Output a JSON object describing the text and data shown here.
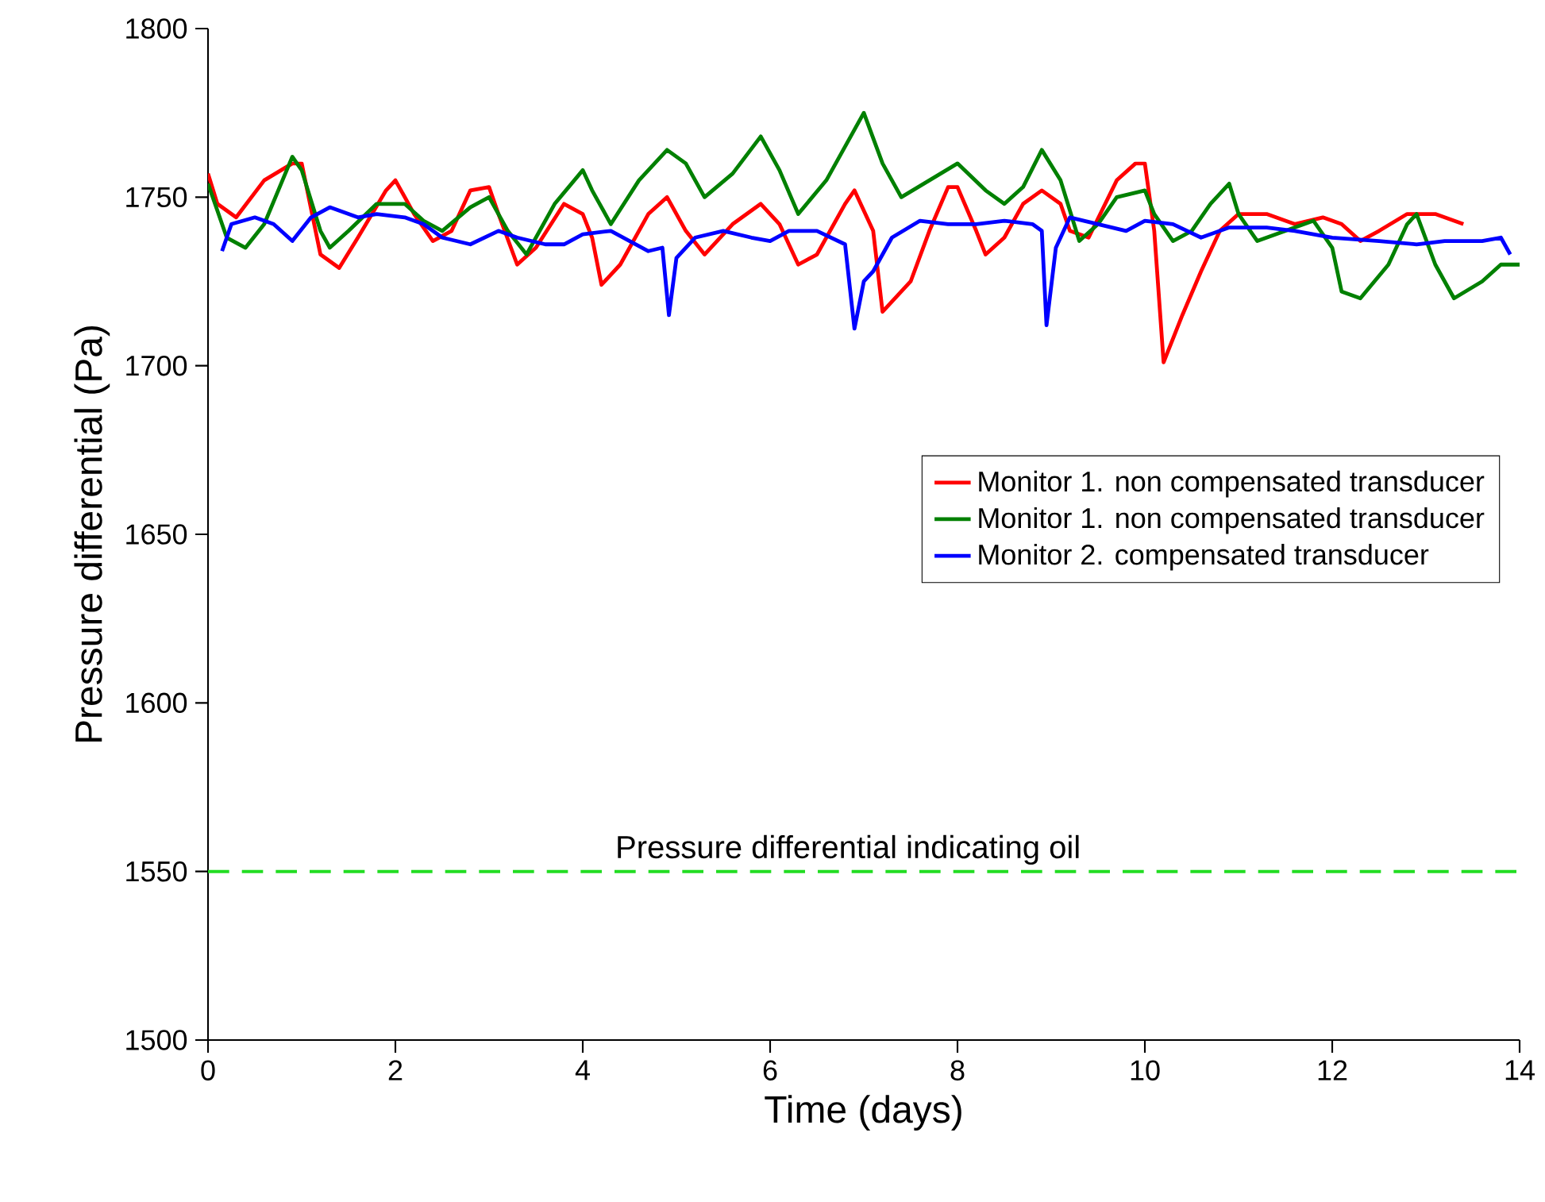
{
  "chart_data": {
    "type": "line",
    "xlabel": "Time (days)",
    "ylabel": "Pressure differential (Pa)",
    "xlim": [
      0,
      14
    ],
    "ylim": [
      1500,
      1800
    ],
    "xticks": [
      0,
      2,
      4,
      6,
      8,
      10,
      12,
      14
    ],
    "yticks": [
      1500,
      1550,
      1600,
      1650,
      1700,
      1750,
      1800
    ],
    "grid": false,
    "legend": "right",
    "marker": "none",
    "line_style": "solid",
    "ref_lines": [
      {
        "axis": "y",
        "value": 1550,
        "label": "Pressure differential indicating oil",
        "color": "#22dd22",
        "line_style": "dashed"
      }
    ],
    "series": [
      {
        "name": "Monitor 1. non compensated transducer",
        "color": "#ff0000",
        "x": [
          0,
          0.1,
          0.3,
          0.6,
          0.9,
          1.0,
          1.2,
          1.4,
          1.6,
          1.9,
          2.0,
          2.2,
          2.4,
          2.6,
          2.8,
          3.0,
          3.1,
          3.3,
          3.5,
          3.8,
          4.0,
          4.1,
          4.2,
          4.4,
          4.7,
          4.9,
          5.1,
          5.3,
          5.6,
          5.9,
          6.1,
          6.3,
          6.5,
          6.8,
          6.9,
          7.1,
          7.2,
          7.5,
          7.7,
          7.9,
          8.0,
          8.2,
          8.3,
          8.5,
          8.7,
          8.9,
          9.1,
          9.2,
          9.4,
          9.7,
          9.9,
          10.0,
          10.1,
          10.2,
          10.4,
          10.6,
          10.8,
          11.0,
          11.3,
          11.6,
          11.9,
          12.1,
          12.3,
          12.5,
          12.8,
          13.1,
          13.4
        ],
        "values": [
          1757,
          1748,
          1744,
          1755,
          1760,
          1760,
          1733,
          1729,
          1738,
          1752,
          1755,
          1745,
          1737,
          1740,
          1752,
          1753,
          1745,
          1730,
          1735,
          1748,
          1745,
          1738,
          1724,
          1730,
          1745,
          1750,
          1740,
          1733,
          1742,
          1748,
          1742,
          1730,
          1733,
          1748,
          1752,
          1740,
          1716,
          1725,
          1740,
          1753,
          1753,
          1740,
          1733,
          1738,
          1748,
          1752,
          1748,
          1740,
          1738,
          1755,
          1760,
          1760,
          1740,
          1701,
          1715,
          1728,
          1740,
          1745,
          1745,
          1742,
          1744,
          1742,
          1737,
          1740,
          1745,
          1745,
          1742
        ]
      },
      {
        "name": "Monitor 1. non compensated transducer",
        "color": "#008000",
        "x": [
          0,
          0.2,
          0.4,
          0.6,
          0.9,
          1.0,
          1.2,
          1.3,
          1.5,
          1.8,
          2.1,
          2.3,
          2.5,
          2.8,
          3.0,
          3.2,
          3.4,
          3.7,
          4.0,
          4.1,
          4.3,
          4.6,
          4.9,
          5.1,
          5.3,
          5.6,
          5.9,
          6.1,
          6.3,
          6.6,
          6.9,
          7.0,
          7.2,
          7.4,
          7.7,
          8.0,
          8.3,
          8.5,
          8.7,
          8.9,
          9.1,
          9.3,
          9.5,
          9.7,
          10.0,
          10.1,
          10.3,
          10.5,
          10.7,
          10.9,
          11.0,
          11.2,
          11.5,
          11.8,
          12.0,
          12.1,
          12.3,
          12.6,
          12.8,
          12.9,
          13.1,
          13.3,
          13.6,
          13.8,
          14.0
        ],
        "values": [
          1754,
          1738,
          1735,
          1742,
          1762,
          1758,
          1740,
          1735,
          1740,
          1748,
          1748,
          1743,
          1740,
          1747,
          1750,
          1740,
          1733,
          1748,
          1758,
          1752,
          1742,
          1755,
          1764,
          1760,
          1750,
          1757,
          1768,
          1758,
          1745,
          1755,
          1770,
          1775,
          1760,
          1750,
          1755,
          1760,
          1752,
          1748,
          1753,
          1764,
          1755,
          1737,
          1742,
          1750,
          1752,
          1745,
          1737,
          1740,
          1748,
          1754,
          1745,
          1737,
          1740,
          1743,
          1735,
          1722,
          1720,
          1730,
          1742,
          1745,
          1730,
          1720,
          1725,
          1730,
          1730
        ]
      },
      {
        "name": "Monitor 2. compensated transducer",
        "color": "#0000ff",
        "x": [
          0.15,
          0.25,
          0.5,
          0.7,
          0.9,
          1.1,
          1.3,
          1.6,
          1.8,
          2.1,
          2.3,
          2.5,
          2.8,
          3.1,
          3.3,
          3.6,
          3.8,
          4.0,
          4.3,
          4.5,
          4.7,
          4.85,
          4.92,
          5.0,
          5.2,
          5.5,
          5.8,
          6.0,
          6.2,
          6.5,
          6.8,
          6.9,
          7.0,
          7.1,
          7.3,
          7.6,
          7.9,
          8.2,
          8.5,
          8.8,
          8.9,
          8.95,
          9.05,
          9.2,
          9.5,
          9.8,
          10.0,
          10.3,
          10.6,
          10.9,
          11.3,
          11.6,
          12.0,
          12.5,
          12.9,
          13.2,
          13.6,
          13.8,
          13.9
        ],
        "values": [
          1734,
          1742,
          1744,
          1742,
          1737,
          1744,
          1747,
          1744,
          1745,
          1744,
          1742,
          1738,
          1736,
          1740,
          1738,
          1736,
          1736,
          1739,
          1740,
          1737,
          1734,
          1735,
          1715,
          1732,
          1738,
          1740,
          1738,
          1737,
          1740,
          1740,
          1736,
          1711,
          1725,
          1728,
          1738,
          1743,
          1742,
          1742,
          1743,
          1742,
          1740,
          1712,
          1735,
          1744,
          1742,
          1740,
          1743,
          1742,
          1738,
          1741,
          1741,
          1740,
          1738,
          1737,
          1736,
          1737,
          1737,
          1738,
          1733
        ]
      }
    ]
  }
}
